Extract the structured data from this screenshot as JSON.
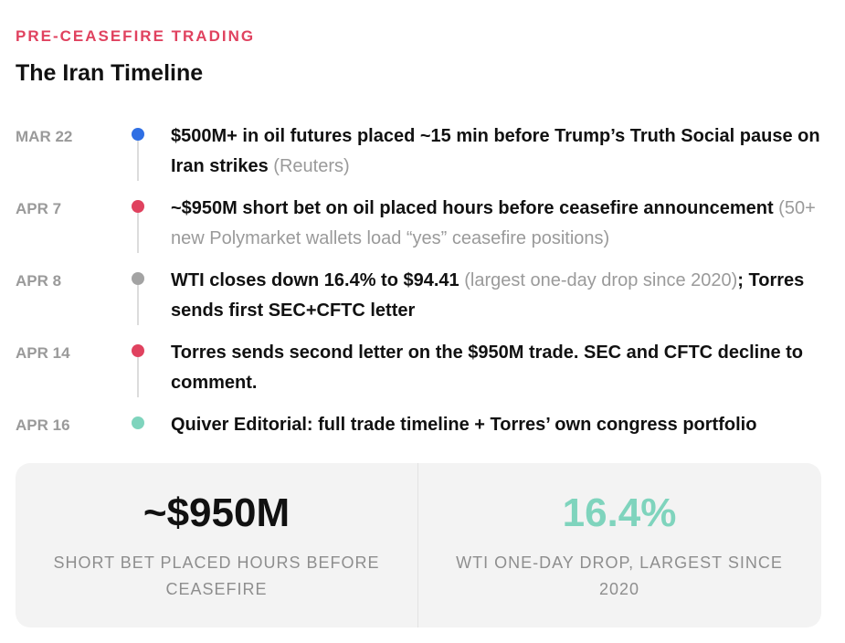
{
  "header": {
    "kicker": "PRE-CEASEFIRE TRADING",
    "title": "The Iran Timeline"
  },
  "timeline": [
    {
      "date": "MAR 22",
      "dot_color": "#2f6fe4",
      "text": "$500M+ in oil futures placed ~15 min before Trump’s Truth Social pause on Iran strikes",
      "note": " (Reuters)",
      "text_tail": ""
    },
    {
      "date": "APR 7",
      "dot_color": "#e0425f",
      "text": "~$950M short bet on oil placed hours before ceasefire announcement",
      "note": " (50+ new Polymarket wallets load “yes” ceasefire positions)",
      "text_tail": ""
    },
    {
      "date": "APR 8",
      "dot_color": "#a3a3a3",
      "text": "WTI closes down 16.4% to $94.41",
      "note": " (largest one-day drop since 2020)",
      "text_tail": "; Torres sends first SEC+CFTC letter"
    },
    {
      "date": "APR 14",
      "dot_color": "#e0425f",
      "text": "Torres sends second letter on the $950M trade. SEC and CFTC decline to comment.",
      "note": "",
      "text_tail": ""
    },
    {
      "date": "APR 16",
      "dot_color": "#7fd4bd",
      "text": "Quiver Editorial: full trade timeline + Torres’ own congress portfolio",
      "note": "",
      "text_tail": ""
    }
  ],
  "stats": [
    {
      "value": "~$950M",
      "value_color": "#111111",
      "caption": "SHORT BET PLACED HOURS BEFORE CEASEFIRE"
    },
    {
      "value": "16.4%",
      "value_color": "#7fd4bd",
      "caption": "WTI ONE-DAY DROP, LARGEST SINCE 2020"
    }
  ]
}
